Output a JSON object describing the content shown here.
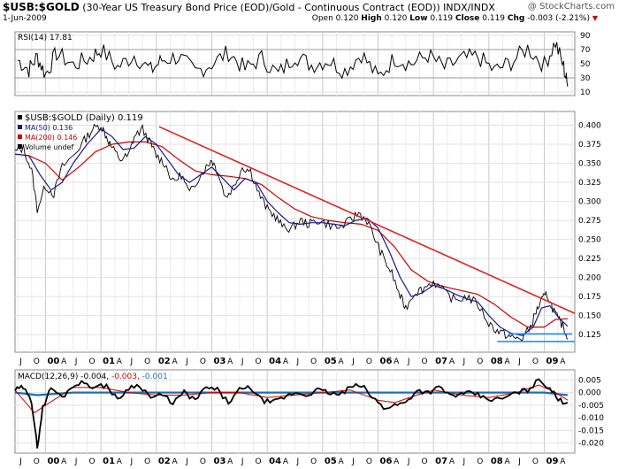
{
  "header": {
    "symbol": "$USB:$GOLD",
    "description": "(30-Year US Treasury Bond Price (EOD)/Gold - Continuous Contract (EOD)) INDX/INDX",
    "date": "1-Jun-2009",
    "brand": "@ StockCharts.com",
    "quote": {
      "open_label": "Open",
      "open": "0.120",
      "high_label": "High",
      "high": "0.120",
      "low_label": "Low",
      "low": "0.119",
      "close_label": "Close",
      "close": "0.119",
      "chg_label": "Chg",
      "chg": "-0.003 (-2.21%)",
      "down_arrow": "▼"
    }
  },
  "colors": {
    "price": "#000000",
    "ma50": "#1a1a8c",
    "ma200": "#cc0000",
    "trendline": "#dd2222",
    "support": "#1e90ff",
    "rsi_line": "#000000",
    "macd_line": "#000000",
    "signal_line": "#cc0000",
    "histogram": "#1e6fb0",
    "grid": "#d8d8d8",
    "ylabel_arrow": "#cc0000"
  },
  "chart_data": [
    {
      "panel": "rsi",
      "type": "line",
      "legend": [
        "RSI(14) 17.81"
      ],
      "y_ticks": [
        90,
        70,
        50,
        30,
        10
      ],
      "ylim": [
        5,
        95
      ],
      "shaded_levels": [
        30,
        70
      ],
      "series": [
        {
          "name": "RSI(14)",
          "x": [
            1999.5,
            1999.7,
            1999.85,
            2000.0,
            2000.2,
            2000.5,
            2000.8,
            2001.0,
            2001.3,
            2001.6,
            2001.9,
            2002.1,
            2002.4,
            2002.7,
            2003.0,
            2003.3,
            2003.6,
            2003.9,
            2004.2,
            2004.5,
            2004.8,
            2005.1,
            2005.4,
            2005.7,
            2006.0,
            2006.3,
            2006.6,
            2006.9,
            2007.2,
            2007.5,
            2007.8,
            2008.1,
            2008.4,
            2008.7,
            2009.0,
            2009.2,
            2009.35,
            2009.42
          ],
          "y": [
            55,
            42,
            60,
            35,
            65,
            48,
            58,
            70,
            45,
            62,
            40,
            55,
            60,
            38,
            50,
            66,
            42,
            58,
            35,
            62,
            48,
            55,
            40,
            64,
            30,
            58,
            50,
            62,
            44,
            56,
            60,
            40,
            52,
            72,
            48,
            80,
            45,
            17.81
          ]
        }
      ]
    },
    {
      "panel": "price",
      "type": "line",
      "legend": [
        "$USB:$GOLD (Daily) 0.119",
        "MA(50) 0.136",
        "MA(200) 0.146",
        "Volume undef"
      ],
      "x_ticks": [
        "J",
        "O",
        "00",
        "A",
        "J",
        "O",
        "01",
        "A",
        "J",
        "O",
        "02",
        "A",
        "J",
        "O",
        "03",
        "A",
        "J",
        "O",
        "04",
        "A",
        "J",
        "O",
        "05",
        "A",
        "J",
        "O",
        "06",
        "A",
        "J",
        "O",
        "07",
        "A",
        "J",
        "O",
        "08",
        "A",
        "J",
        "O",
        "09",
        "A"
      ],
      "y_ticks": [
        0.4,
        0.375,
        0.35,
        0.325,
        0.3,
        0.275,
        0.25,
        0.225,
        0.2,
        0.175,
        0.15,
        0.125
      ],
      "ylim": [
        0.102,
        0.418
      ],
      "xlim": [
        1999.45,
        2009.55
      ],
      "series": [
        {
          "name": "$USB:$GOLD",
          "x": [
            1999.45,
            1999.6,
            1999.75,
            1999.85,
            2000.0,
            2000.15,
            2000.3,
            2000.5,
            2000.7,
            2000.85,
            2001.0,
            2001.1,
            2001.2,
            2001.35,
            2001.5,
            2001.6,
            2001.75,
            2001.9,
            2002.0,
            2002.15,
            2002.3,
            2002.45,
            2002.6,
            2002.75,
            2002.9,
            2003.0,
            2003.1,
            2003.25,
            2003.4,
            2003.55,
            2003.7,
            2003.85,
            2004.0,
            2004.15,
            2004.3,
            2004.45,
            2004.6,
            2004.75,
            2004.9,
            2005.1,
            2005.3,
            2005.5,
            2005.65,
            2005.8,
            2005.95,
            2006.1,
            2006.25,
            2006.4,
            2006.5,
            2006.65,
            2006.8,
            2007.0,
            2007.2,
            2007.4,
            2007.6,
            2007.8,
            2008.0,
            2008.15,
            2008.3,
            2008.45,
            2008.6,
            2008.75,
            2008.85,
            2008.95,
            2009.05,
            2009.15,
            2009.25,
            2009.35,
            2009.42
          ],
          "y": [
            0.365,
            0.37,
            0.34,
            0.29,
            0.32,
            0.31,
            0.345,
            0.36,
            0.38,
            0.395,
            0.4,
            0.385,
            0.37,
            0.355,
            0.36,
            0.385,
            0.395,
            0.375,
            0.36,
            0.35,
            0.325,
            0.335,
            0.31,
            0.33,
            0.345,
            0.355,
            0.34,
            0.305,
            0.32,
            0.345,
            0.34,
            0.31,
            0.29,
            0.28,
            0.265,
            0.265,
            0.275,
            0.27,
            0.275,
            0.27,
            0.265,
            0.275,
            0.285,
            0.275,
            0.25,
            0.225,
            0.205,
            0.175,
            0.16,
            0.18,
            0.185,
            0.195,
            0.18,
            0.17,
            0.175,
            0.165,
            0.14,
            0.13,
            0.125,
            0.12,
            0.12,
            0.135,
            0.155,
            0.17,
            0.178,
            0.16,
            0.145,
            0.135,
            0.119
          ]
        },
        {
          "name": "MA(50)",
          "x": [
            1999.45,
            1999.7,
            1999.9,
            2000.1,
            2000.3,
            2000.5,
            2000.75,
            2001.0,
            2001.2,
            2001.4,
            2001.6,
            2001.8,
            2002.0,
            2002.2,
            2002.4,
            2002.6,
            2002.8,
            2003.0,
            2003.2,
            2003.4,
            2003.6,
            2003.8,
            2004.0,
            2004.2,
            2004.4,
            2004.6,
            2004.8,
            2005.0,
            2005.2,
            2005.4,
            2005.6,
            2005.8,
            2006.0,
            2006.2,
            2006.4,
            2006.6,
            2006.8,
            2007.0,
            2007.2,
            2007.4,
            2007.6,
            2007.8,
            2008.0,
            2008.2,
            2008.4,
            2008.6,
            2008.8,
            2008.95,
            2009.1,
            2009.25,
            2009.42
          ],
          "y": [
            0.362,
            0.36,
            0.335,
            0.315,
            0.325,
            0.35,
            0.375,
            0.395,
            0.385,
            0.368,
            0.37,
            0.385,
            0.375,
            0.355,
            0.335,
            0.325,
            0.335,
            0.345,
            0.33,
            0.315,
            0.33,
            0.325,
            0.3,
            0.285,
            0.272,
            0.27,
            0.272,
            0.272,
            0.27,
            0.268,
            0.275,
            0.278,
            0.265,
            0.235,
            0.2,
            0.175,
            0.18,
            0.19,
            0.185,
            0.178,
            0.172,
            0.168,
            0.15,
            0.135,
            0.127,
            0.124,
            0.135,
            0.16,
            0.163,
            0.148,
            0.136
          ]
        },
        {
          "name": "MA(200)",
          "x": [
            1999.45,
            1999.7,
            2000.0,
            2000.3,
            2000.6,
            2000.9,
            2001.2,
            2001.5,
            2001.8,
            2002.1,
            2002.4,
            2002.7,
            2003.0,
            2003.3,
            2003.6,
            2003.9,
            2004.2,
            2004.5,
            2004.8,
            2005.1,
            2005.4,
            2005.7,
            2006.0,
            2006.3,
            2006.6,
            2006.9,
            2007.2,
            2007.5,
            2007.8,
            2008.1,
            2008.4,
            2008.7,
            2009.0,
            2009.2,
            2009.42
          ],
          "y": [
            0.362,
            0.36,
            0.35,
            0.328,
            0.345,
            0.365,
            0.375,
            0.378,
            0.378,
            0.372,
            0.355,
            0.34,
            0.335,
            0.333,
            0.33,
            0.322,
            0.305,
            0.29,
            0.28,
            0.275,
            0.272,
            0.27,
            0.262,
            0.24,
            0.21,
            0.195,
            0.188,
            0.183,
            0.178,
            0.165,
            0.148,
            0.135,
            0.135,
            0.145,
            0.146
          ]
        },
        {
          "name": "Trendline",
          "x": [
            2002.05,
            2009.55
          ],
          "y": [
            0.398,
            0.153
          ]
        },
        {
          "name": "Support 1",
          "x": [
            2008.35,
            2009.5
          ],
          "y": [
            0.126,
            0.126
          ]
        },
        {
          "name": "Support 2",
          "x": [
            2008.15,
            2009.55
          ],
          "y": [
            0.116,
            0.116
          ]
        }
      ]
    },
    {
      "panel": "macd",
      "type": "line",
      "legend_label": "MACD(12,26,9)",
      "legend_values": [
        "-0.004",
        "-0.003",
        "-0.001"
      ],
      "y_ticks": [
        0.005,
        0.0,
        -0.005,
        -0.01,
        -0.015,
        -0.02
      ],
      "y_tick_labels": [
        "0.005",
        "0.000",
        "-0.005",
        "-0.010",
        "-0.015",
        "-0.020"
      ],
      "ylim": [
        -0.024,
        0.009
      ],
      "series": [
        {
          "name": "MACD",
          "x": [
            1999.45,
            1999.6,
            1999.75,
            1999.8,
            1999.85,
            1999.95,
            2000.1,
            2000.3,
            2000.5,
            2000.7,
            2000.9,
            2001.1,
            2001.3,
            2001.5,
            2001.7,
            2001.9,
            2002.1,
            2002.3,
            2002.5,
            2002.7,
            2002.9,
            2003.1,
            2003.3,
            2003.5,
            2003.7,
            2003.9,
            2004.1,
            2004.3,
            2004.5,
            2004.7,
            2004.9,
            2005.1,
            2005.3,
            2005.5,
            2005.7,
            2005.9,
            2006.1,
            2006.3,
            2006.5,
            2006.7,
            2006.9,
            2007.1,
            2007.3,
            2007.5,
            2007.7,
            2007.9,
            2008.1,
            2008.3,
            2008.5,
            2008.7,
            2008.9,
            2009.1,
            2009.25,
            2009.42
          ],
          "y": [
            0.001,
            0.002,
            -0.004,
            -0.012,
            -0.022,
            -0.006,
            0.002,
            -0.002,
            0.003,
            0.004,
            0.002,
            0.003,
            -0.003,
            0.002,
            0.003,
            -0.002,
            -0.001,
            -0.004,
            0.0,
            -0.003,
            0.002,
            0.001,
            -0.004,
            0.001,
            0.002,
            -0.003,
            -0.004,
            -0.002,
            0.0,
            -0.001,
            0.001,
            0.0,
            -0.001,
            0.002,
            0.003,
            -0.002,
            -0.006,
            -0.005,
            -0.004,
            0.001,
            0.0,
            0.002,
            -0.001,
            -0.001,
            0.0,
            -0.002,
            -0.003,
            -0.002,
            0.0,
            0.001,
            0.005,
            0.002,
            -0.003,
            -0.004
          ]
        },
        {
          "name": "Signal",
          "x": [
            1999.45,
            1999.8,
            2000.0,
            2000.5,
            2001.0,
            2001.5,
            2002.0,
            2002.5,
            2003.0,
            2003.5,
            2004.0,
            2004.5,
            2005.0,
            2005.5,
            2006.0,
            2006.3,
            2006.7,
            2007.0,
            2007.5,
            2008.0,
            2008.5,
            2008.9,
            2009.2,
            2009.42
          ],
          "y": [
            0.001,
            -0.008,
            -0.005,
            0.002,
            0.002,
            0.0,
            -0.001,
            -0.001,
            0.0,
            0.0,
            -0.002,
            -0.001,
            0.0,
            0.001,
            -0.003,
            -0.004,
            -0.001,
            0.001,
            -0.001,
            -0.002,
            0.0,
            0.003,
            0.0,
            -0.003
          ]
        },
        {
          "name": "Histogram",
          "x": [
            1999.45,
            1999.85,
            2000.5,
            2001.0,
            2001.5,
            2002.0,
            2002.5,
            2003.0,
            2003.5,
            2004.0,
            2004.5,
            2005.0,
            2005.5,
            2006.0,
            2006.5,
            2007.0,
            2007.5,
            2008.0,
            2008.5,
            2009.0,
            2009.42
          ],
          "y": [
            0.0,
            -0.001,
            0.0,
            0.0,
            0.0,
            0.0,
            0.0,
            0.0,
            0.0,
            0.0,
            0.0,
            0.0,
            0.0,
            0.0,
            0.0,
            0.0,
            0.0,
            0.0,
            0.0,
            0.0,
            -0.001
          ]
        }
      ]
    }
  ]
}
